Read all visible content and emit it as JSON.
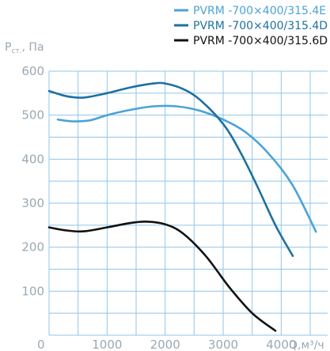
{
  "chart_data": {
    "type": "line",
    "xlabel": "Q,м³/ч",
    "ylabel_main": "P",
    "ylabel_sub": "ст.",
    "ylabel_unit": ", Па",
    "xlim": [
      0,
      4800
    ],
    "ylim": [
      0,
      600
    ],
    "x_ticks": [
      "0",
      "1000",
      "2000",
      "3000",
      "4000"
    ],
    "y_ticks": [
      "100",
      "200",
      "300",
      "400",
      "500",
      "600"
    ],
    "grid": true,
    "legend_position": "top-right",
    "series": [
      {
        "name": "PVRM -700×400/315.4E",
        "color": "#4aa3d6",
        "x": [
          150,
          400,
          700,
          1000,
          1400,
          1800,
          2200,
          2600,
          3000,
          3400,
          3800,
          4200,
          4600
        ],
        "y": [
          490,
          486,
          488,
          500,
          512,
          520,
          520,
          510,
          490,
          460,
          410,
          340,
          235
        ]
      },
      {
        "name": "PVRM -700×400/315.4D",
        "color": "#1e70a0",
        "x": [
          0,
          300,
          600,
          1000,
          1400,
          1800,
          2000,
          2300,
          2600,
          3000,
          3300,
          3600,
          3900,
          4200
        ],
        "y": [
          555,
          543,
          540,
          550,
          563,
          572,
          572,
          560,
          535,
          480,
          415,
          335,
          250,
          180
        ]
      },
      {
        "name": "PVRM -700×400/315.6D",
        "color": "#111111",
        "x": [
          0,
          300,
          600,
          1000,
          1400,
          1700,
          2000,
          2300,
          2700,
          3100,
          3500,
          3900
        ],
        "y": [
          245,
          238,
          236,
          245,
          255,
          258,
          252,
          232,
          180,
          110,
          50,
          10
        ]
      }
    ]
  }
}
